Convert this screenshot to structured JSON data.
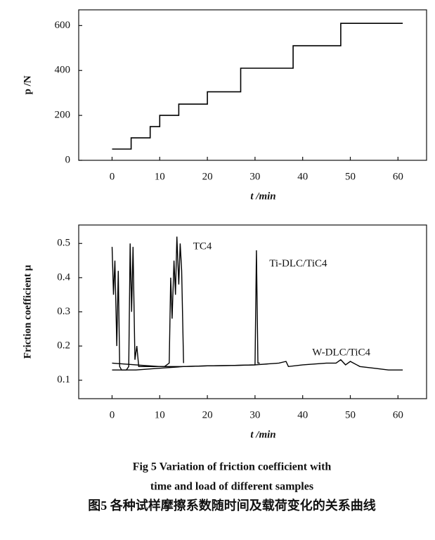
{
  "chart_data": [
    {
      "type": "line",
      "x_label": "t /min",
      "y_label": "p /N",
      "x": [
        0,
        4,
        4,
        8,
        8,
        10,
        10,
        14,
        14,
        20,
        20,
        27,
        27,
        38,
        38,
        48,
        48,
        61
      ],
      "values": [
        50,
        50,
        100,
        100,
        150,
        150,
        200,
        200,
        250,
        250,
        305,
        305,
        410,
        410,
        510,
        510,
        610,
        610
      ],
      "color": "#000000",
      "xlim": [
        -7,
        66
      ],
      "ylim": [
        0,
        670
      ],
      "xticks": [
        0,
        10,
        20,
        30,
        40,
        50,
        60
      ],
      "yticks": [
        0,
        200,
        400,
        600
      ]
    },
    {
      "type": "line",
      "x_label": "t /min",
      "y_label": "Friction coefficient μ",
      "xlim": [
        -7,
        66
      ],
      "ylim": [
        0.046,
        0.554
      ],
      "xticks": [
        0,
        10,
        20,
        30,
        40,
        50,
        60
      ],
      "yticks": [
        0.1,
        0.2,
        0.3,
        0.4,
        0.5
      ],
      "series": [
        {
          "name": "TC4",
          "color": "#000000",
          "x": [
            0,
            0.3,
            0.6,
            1,
            1.3,
            1.6,
            2,
            2.5,
            3,
            3.5,
            3.8,
            4.1,
            4.4,
            4.8,
            5.2,
            5.6,
            6,
            7,
            8,
            9,
            10,
            11,
            12,
            12.3,
            12.6,
            13,
            13.3,
            13.6,
            14,
            14.3,
            14.6,
            15
          ],
          "values": [
            0.49,
            0.35,
            0.45,
            0.2,
            0.42,
            0.14,
            0.13,
            0.13,
            0.13,
            0.14,
            0.5,
            0.3,
            0.49,
            0.16,
            0.2,
            0.14,
            0.14,
            0.14,
            0.14,
            0.14,
            0.14,
            0.14,
            0.15,
            0.4,
            0.28,
            0.45,
            0.35,
            0.52,
            0.38,
            0.5,
            0.42,
            0.15
          ]
        },
        {
          "name": "Ti-DLC/TiC4",
          "color": "#000000",
          "x": [
            0,
            5,
            10,
            15,
            20,
            25,
            30,
            30.3,
            30.6,
            31
          ],
          "values": [
            0.15,
            0.145,
            0.14,
            0.14,
            0.142,
            0.143,
            0.145,
            0.48,
            0.15,
            0.15
          ]
        },
        {
          "name": "W-DLC/TiC4",
          "color": "#000000",
          "x": [
            0,
            5,
            10,
            15,
            20,
            25,
            30,
            35,
            36.5,
            37,
            40,
            45,
            47,
            48,
            49,
            50,
            52,
            55,
            58,
            60,
            61
          ],
          "values": [
            0.13,
            0.13,
            0.135,
            0.14,
            0.142,
            0.143,
            0.145,
            0.15,
            0.155,
            0.14,
            0.145,
            0.15,
            0.15,
            0.16,
            0.145,
            0.155,
            0.14,
            0.135,
            0.13,
            0.13,
            0.13
          ]
        }
      ]
    }
  ],
  "captions": [
    "Fig 5   Variation of friction coefficient with",
    "time and load of different samples",
    "图5   各种试样摩擦系数随时间及载荷变化的关系曲线"
  ]
}
